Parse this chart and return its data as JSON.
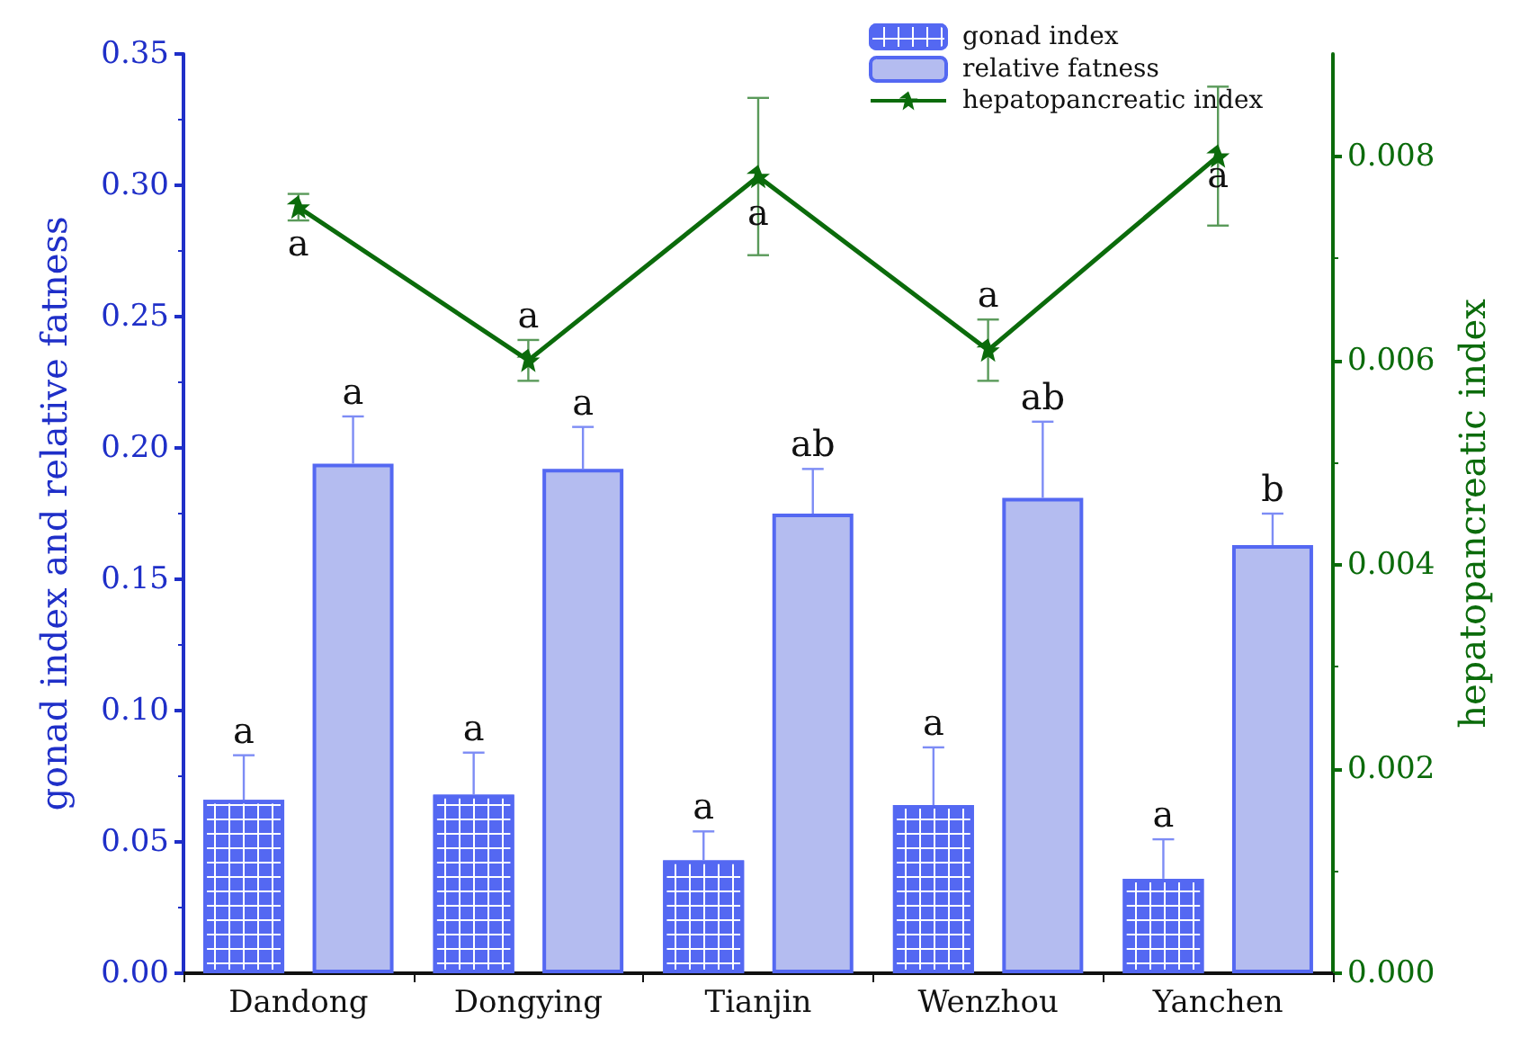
{
  "chart_data": {
    "type": "bar",
    "ylabel": "gonad index and relative fatness",
    "y2label": "hepatopancreatic index",
    "categories": [
      "Dandong",
      "Dongying",
      "Tianjin",
      "Wenzhou",
      "Yanchen"
    ],
    "series": [
      {
        "name": "gonad index",
        "color": "#5468f2",
        "values": [
          0.066,
          0.068,
          0.043,
          0.064,
          0.036
        ],
        "errors": [
          0.017,
          0.016,
          0.011,
          0.022,
          0.015
        ]
      },
      {
        "name": "relative fatness",
        "color": "#b4bcf0",
        "values": [
          0.194,
          0.192,
          0.175,
          0.181,
          0.163
        ],
        "errors": [
          0.018,
          0.016,
          0.017,
          0.029,
          0.012
        ]
      },
      {
        "name": "hepatopancreatic index",
        "type": "line",
        "axis": "y2",
        "color": "#0b6b0b",
        "marker": "star",
        "values": [
          0.0075,
          0.006,
          0.0078,
          0.0061,
          0.008
        ],
        "errors": [
          0.00013,
          0.0002,
          0.00077,
          0.0003,
          0.00068
        ]
      }
    ],
    "ylim": [
      0,
      0.35
    ],
    "yticks": [
      {
        "value": 0,
        "label": "0.00"
      },
      {
        "value": 0.05,
        "label": "0.05"
      },
      {
        "value": 0.1,
        "label": "0.10"
      },
      {
        "value": 0.15,
        "label": "0.15"
      },
      {
        "value": 0.2,
        "label": "0.20"
      },
      {
        "value": 0.25,
        "label": "0.25"
      },
      {
        "value": 0.3,
        "label": "0.30"
      },
      {
        "value": 0.35,
        "label": "0.35"
      }
    ],
    "y2lim": [
      0,
      0.009
    ],
    "y2ticks": [
      {
        "value": 0,
        "label": "0.000"
      },
      {
        "value": 0.002,
        "label": "0.002"
      },
      {
        "value": 0.004,
        "label": "0.004"
      },
      {
        "value": 0.006,
        "label": "0.006"
      },
      {
        "value": 0.008,
        "label": "0.008"
      }
    ],
    "annotations": [
      "a",
      "a",
      "a",
      "a",
      "a",
      "a",
      "a",
      "ab",
      "ab",
      "b",
      "a",
      "a",
      "a",
      "a",
      "a"
    ],
    "legend": "top",
    "grid": false
  }
}
